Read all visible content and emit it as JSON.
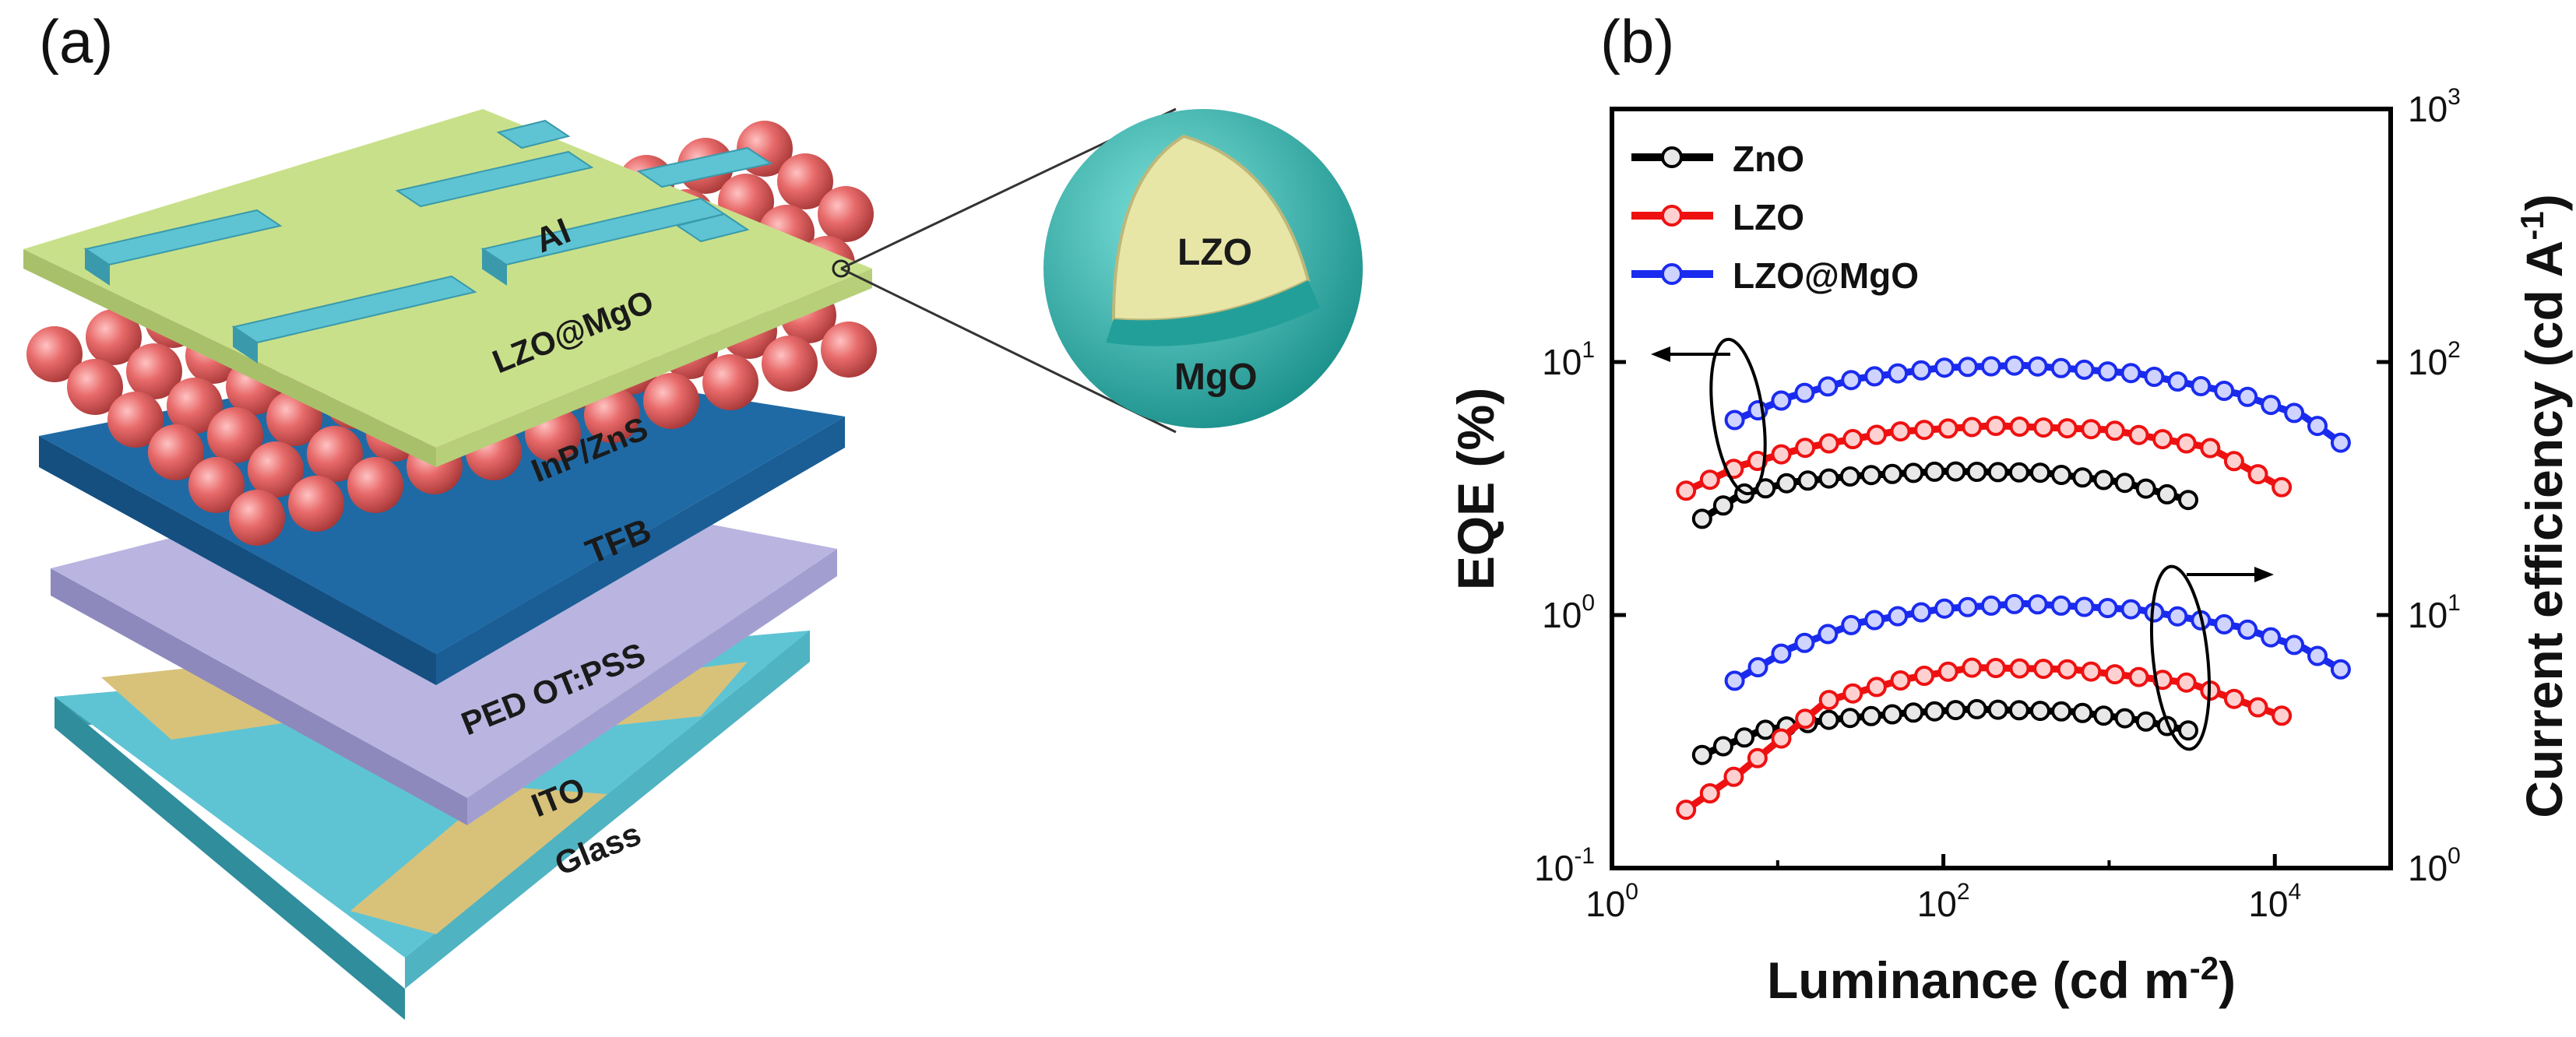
{
  "panels": {
    "a": "(a)",
    "b": "(b)"
  },
  "device": {
    "layers": [
      "Al",
      "LZO@MgO",
      "InP/ZnS",
      "TFB",
      "PEDOT:PSS",
      "ITO",
      "Glass"
    ],
    "layer_labels": {
      "al": "Al",
      "etl": "LZO@MgO",
      "qd": "InP/ZnS",
      "tfb": "TFB",
      "pedot": "PED OT:PSS",
      "ito": "ITO",
      "glass": "Glass"
    },
    "inset": {
      "core": "LZO",
      "shell": "MgO"
    },
    "colors": {
      "al": "#5ec4d4",
      "etl": "#c9e08a",
      "qd": "#e86a6a",
      "tfb": "#1f6aa5",
      "pedot": "#b9b5e0",
      "ito": "#d8c27a",
      "glass": "#5ec4d4",
      "shell": "#2fb7b0",
      "core": "#e8e6a6"
    }
  },
  "chart_data": {
    "type": "line",
    "xscale": "log",
    "xlabel": "Luminance (cd m",
    "xlabel_sup": "-2",
    "xlabel_end": ")",
    "ylabel_left": "EQE (%)",
    "ylabel_right": "Current efficiency (cd A",
    "ylabel_right_sup": "-1",
    "ylabel_right_end": ")",
    "xlim": [
      1,
      50000
    ],
    "ylim_left": [
      0.1,
      100
    ],
    "ylim_right": [
      1,
      1000
    ],
    "x_ticks": [
      {
        "base": "10",
        "exp": "0",
        "value": 1
      },
      {
        "base": "10",
        "exp": "2",
        "value": 100
      },
      {
        "base": "10",
        "exp": "4",
        "value": 10000
      }
    ],
    "y_ticks_left": [
      {
        "base": "10",
        "exp": "-1",
        "value": 0.1
      },
      {
        "base": "10",
        "exp": "0",
        "value": 1
      },
      {
        "base": "10",
        "exp": "1",
        "value": 10
      }
    ],
    "y_ticks_right": [
      {
        "base": "10",
        "exp": "0",
        "value": 1
      },
      {
        "base": "10",
        "exp": "1",
        "value": 10
      },
      {
        "base": "10",
        "exp": "2",
        "value": 100
      },
      {
        "base": "10",
        "exp": "3",
        "value": 1000
      }
    ],
    "legend": [
      "ZnO",
      "LZO",
      "LZO@MgO"
    ],
    "legend_position": "top-left",
    "series": [
      {
        "name": "ZnO",
        "axis": "left",
        "color": "#000000",
        "x_start": 3.5,
        "x_end": 3000,
        "points": [
          [
            3.5,
            2.4
          ],
          [
            6,
            3.0
          ],
          [
            12,
            3.35
          ],
          [
            30,
            3.55
          ],
          [
            100,
            3.7
          ],
          [
            400,
            3.65
          ],
          [
            1200,
            3.35
          ],
          [
            3000,
            2.85
          ]
        ]
      },
      {
        "name": "LZO",
        "axis": "left",
        "color": "#ee1111",
        "x_start": 2.8,
        "x_end": 11000,
        "points": [
          [
            2.8,
            3.1
          ],
          [
            6,
            3.9
          ],
          [
            15,
            4.6
          ],
          [
            50,
            5.3
          ],
          [
            200,
            5.6
          ],
          [
            1000,
            5.4
          ],
          [
            4000,
            4.6
          ],
          [
            11000,
            3.2
          ]
        ]
      },
      {
        "name": "LZO@MgO",
        "axis": "left",
        "color": "#1a2bee",
        "x_start": 5.5,
        "x_end": 25000,
        "points": [
          [
            5.5,
            5.9
          ],
          [
            12,
            7.3
          ],
          [
            30,
            8.6
          ],
          [
            100,
            9.5
          ],
          [
            300,
            9.7
          ],
          [
            1500,
            9.0
          ],
          [
            6000,
            7.5
          ],
          [
            15000,
            6.1
          ],
          [
            25000,
            4.8
          ]
        ]
      },
      {
        "name": "ZnO",
        "axis": "right",
        "color": "#000000",
        "x_start": 3.5,
        "x_end": 3000,
        "points": [
          [
            3.5,
            2.8
          ],
          [
            8,
            3.5
          ],
          [
            20,
            3.85
          ],
          [
            60,
            4.1
          ],
          [
            150,
            4.25
          ],
          [
            600,
            4.15
          ],
          [
            1500,
            3.85
          ],
          [
            3000,
            3.5
          ]
        ]
      },
      {
        "name": "LZO",
        "axis": "right",
        "color": "#ee1111",
        "x_start": 2.8,
        "x_end": 11000,
        "points": [
          [
            2.8,
            1.7
          ],
          [
            6,
            2.4
          ],
          [
            20,
            4.6
          ],
          [
            60,
            5.6
          ],
          [
            150,
            6.2
          ],
          [
            600,
            6.1
          ],
          [
            3000,
            5.4
          ],
          [
            11000,
            4.0
          ]
        ]
      },
      {
        "name": "LZO@MgO",
        "axis": "right",
        "color": "#1a2bee",
        "x_start": 5.5,
        "x_end": 25000,
        "points": [
          [
            5.5,
            5.5
          ],
          [
            12,
            7.4
          ],
          [
            30,
            9.3
          ],
          [
            100,
            10.6
          ],
          [
            300,
            11.1
          ],
          [
            1500,
            10.5
          ],
          [
            6000,
            9.0
          ],
          [
            15000,
            7.4
          ],
          [
            25000,
            6.1
          ]
        ]
      }
    ],
    "markers": [
      {
        "series": "ZnO",
        "axis": "left",
        "n": 24
      },
      {
        "series": "LZO",
        "axis": "left",
        "n": 26
      },
      {
        "series": "LZO@MgO",
        "axis": "left",
        "n": 27
      },
      {
        "series": "ZnO",
        "axis": "right",
        "n": 24
      },
      {
        "series": "LZO",
        "axis": "right",
        "n": 26
      },
      {
        "series": "LZO@MgO",
        "axis": "right",
        "n": 27
      }
    ]
  }
}
